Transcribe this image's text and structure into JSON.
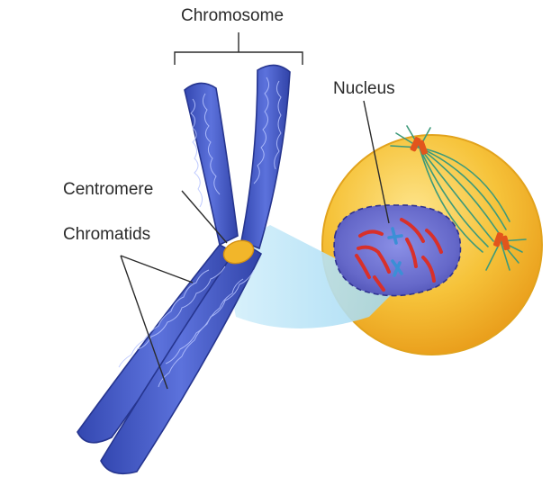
{
  "labels": {
    "chromosome": "Chromosome",
    "nucleus": "Nucleus",
    "centromere": "Centromere",
    "chromatids": "Chromatids"
  },
  "colors": {
    "chromatid_fill": "#4a5fc8",
    "chromatid_texture": "#a9b9ff",
    "centromere": "#f2b62a",
    "cell_fill": "#f4ba24",
    "cell_edge": "#e6a21a",
    "nucleus_fill": "#5a5fbf",
    "nucleus_edge": "#4347a6",
    "spindle": "#3d9a7a",
    "zoom_cone": "#bfe6f7",
    "mini_chromosome_red": "#d8302a",
    "mini_chromosome_blue": "#3b8fd6",
    "centrosome": "#e2551c"
  }
}
